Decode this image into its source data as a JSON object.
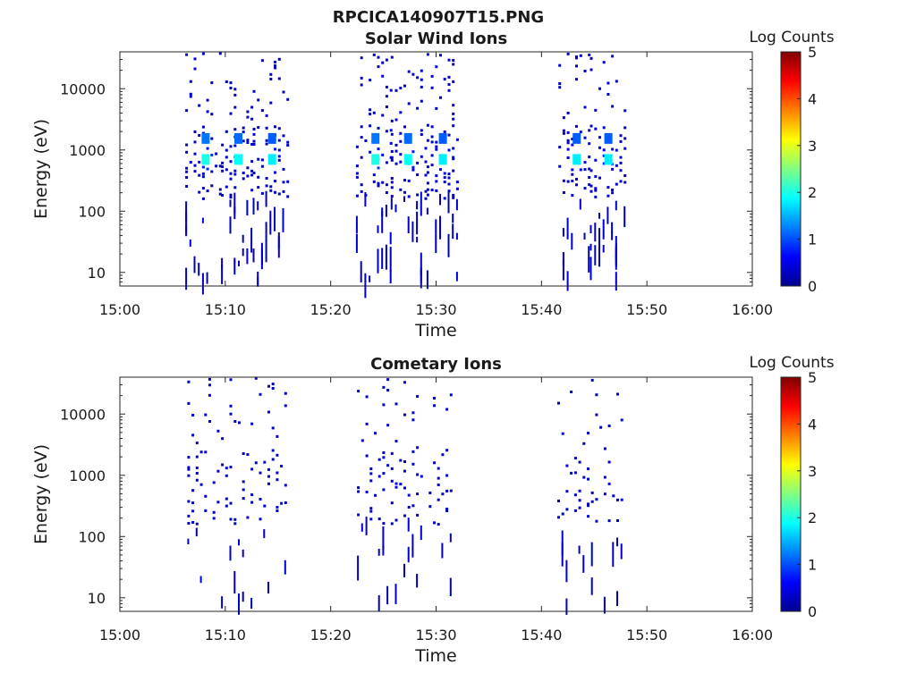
{
  "figure_title": "RPCICA140907T15.PNG",
  "colormap": [
    "#00008f",
    "#0000ff",
    "#0080ff",
    "#00ffff",
    "#80ff80",
    "#ffff00",
    "#ff8000",
    "#ff0000",
    "#800000"
  ],
  "chart_data": [
    {
      "type": "heatmap",
      "title": "Solar Wind Ions",
      "xlabel": "Time",
      "ylabel": "Energy (eV)",
      "x_ticks": [
        "15:00",
        "15:10",
        "15:20",
        "15:30",
        "15:40",
        "15:50",
        "16:00"
      ],
      "xlim": [
        0,
        60
      ],
      "x_unit": "minutes after 15:00",
      "y_scale": "log",
      "ylim": [
        6,
        40000
      ],
      "y_ticks": [
        {
          "value": 10,
          "label": "10"
        },
        {
          "value": 100,
          "label": "100"
        },
        {
          "value": 1000,
          "label": "1000"
        },
        {
          "value": 10000,
          "label": "10000"
        }
      ],
      "colorbar": {
        "label": "Log Counts",
        "min": 0,
        "max": 5,
        "ticks": [
          "0",
          "1",
          "2",
          "3",
          "4",
          "5"
        ]
      },
      "bursts": [
        {
          "t_start": 6.2,
          "t_end": 9.5,
          "peak_time": 8.1,
          "peak_energy": 700,
          "peak_log_counts": 2.0
        },
        {
          "t_start": 9.6,
          "t_end": 12.5,
          "peak_time": 11.2,
          "peak_energy": 700,
          "peak_log_counts": 1.9
        },
        {
          "t_start": 12.6,
          "t_end": 16.0,
          "peak_time": 14.4,
          "peak_energy": 700,
          "peak_log_counts": 1.8
        },
        {
          "t_start": 22.4,
          "t_end": 25.6,
          "peak_time": 24.2,
          "peak_energy": 700,
          "peak_log_counts": 2.0
        },
        {
          "t_start": 25.7,
          "t_end": 29.0,
          "peak_time": 27.3,
          "peak_energy": 700,
          "peak_log_counts": 1.9
        },
        {
          "t_start": 29.1,
          "t_end": 32.0,
          "peak_time": 30.6,
          "peak_energy": 700,
          "peak_log_counts": 1.8
        },
        {
          "t_start": 41.6,
          "t_end": 44.5,
          "peak_time": 43.3,
          "peak_energy": 700,
          "peak_log_counts": 1.8
        },
        {
          "t_start": 44.6,
          "t_end": 47.8,
          "peak_time": 46.3,
          "peak_energy": 700,
          "peak_log_counts": 1.8
        }
      ]
    },
    {
      "type": "heatmap",
      "title": "Cometary Ions",
      "xlabel": "Time",
      "ylabel": "Energy (eV)",
      "x_ticks": [
        "15:00",
        "15:10",
        "15:20",
        "15:30",
        "15:40",
        "15:50",
        "16:00"
      ],
      "xlim": [
        0,
        60
      ],
      "x_unit": "minutes after 15:00",
      "y_scale": "log",
      "ylim": [
        6,
        40000
      ],
      "y_ticks": [
        {
          "value": 10,
          "label": "10"
        },
        {
          "value": 100,
          "label": "100"
        },
        {
          "value": 1000,
          "label": "1000"
        },
        {
          "value": 10000,
          "label": "10000"
        }
      ],
      "colorbar": {
        "label": "Log Counts",
        "min": 0,
        "max": 5,
        "ticks": [
          "0",
          "1",
          "2",
          "3",
          "4",
          "5"
        ]
      },
      "bursts": [
        {
          "t_start": 6.4,
          "t_end": 16.0,
          "peak_time": 11.0,
          "peak_energy": 600,
          "peak_log_counts": 0.5
        },
        {
          "t_start": 22.5,
          "t_end": 31.5,
          "peak_time": 26.5,
          "peak_energy": 600,
          "peak_log_counts": 0.5
        },
        {
          "t_start": 41.5,
          "t_end": 47.5,
          "peak_time": 46.0,
          "peak_energy": 600,
          "peak_log_counts": 0.5
        }
      ]
    }
  ]
}
